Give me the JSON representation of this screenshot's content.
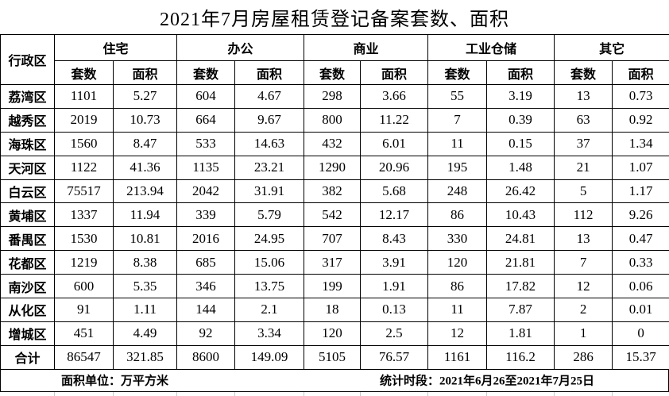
{
  "title": "2021年7月房屋租赁登记备案套数、面积",
  "table": {
    "corner_header": "行政区",
    "groups": [
      {
        "label": "住宅"
      },
      {
        "label": "办公"
      },
      {
        "label": "商业"
      },
      {
        "label": "工业仓储"
      },
      {
        "label": "其它"
      }
    ],
    "sub_headers": [
      "套数",
      "面积",
      "套数",
      "面积",
      "套数",
      "面积",
      "套数",
      "面积",
      "套数",
      "面积"
    ],
    "rows": [
      {
        "district": "荔湾区",
        "values": [
          "1101",
          "5.27",
          "604",
          "4.67",
          "298",
          "3.66",
          "55",
          "3.19",
          "13",
          "0.73"
        ]
      },
      {
        "district": "越秀区",
        "values": [
          "2019",
          "10.73",
          "664",
          "9.67",
          "800",
          "11.22",
          "7",
          "0.39",
          "63",
          "0.92"
        ]
      },
      {
        "district": "海珠区",
        "values": [
          "1560",
          "8.47",
          "533",
          "14.63",
          "432",
          "6.01",
          "11",
          "0.15",
          "37",
          "1.34"
        ]
      },
      {
        "district": "天河区",
        "values": [
          "1122",
          "41.36",
          "1135",
          "23.21",
          "1290",
          "20.96",
          "195",
          "1.48",
          "21",
          "1.07"
        ]
      },
      {
        "district": "白云区",
        "values": [
          "75517",
          "213.94",
          "2042",
          "31.91",
          "382",
          "5.68",
          "248",
          "26.42",
          "5",
          "1.17"
        ]
      },
      {
        "district": "黄埔区",
        "values": [
          "1337",
          "11.94",
          "339",
          "5.79",
          "542",
          "12.17",
          "86",
          "10.43",
          "112",
          "9.26"
        ]
      },
      {
        "district": "番禺区",
        "values": [
          "1530",
          "10.81",
          "2016",
          "24.95",
          "707",
          "8.43",
          "330",
          "24.81",
          "13",
          "0.47"
        ]
      },
      {
        "district": "花都区",
        "values": [
          "1219",
          "8.38",
          "685",
          "15.06",
          "317",
          "3.91",
          "120",
          "21.81",
          "7",
          "0.33"
        ]
      },
      {
        "district": "南沙区",
        "values": [
          "600",
          "5.35",
          "346",
          "13.75",
          "199",
          "1.91",
          "86",
          "17.82",
          "12",
          "0.06"
        ]
      },
      {
        "district": "从化区",
        "values": [
          "91",
          "1.11",
          "144",
          "2.1",
          "18",
          "0.13",
          "11",
          "7.87",
          "2",
          "0.01"
        ]
      },
      {
        "district": "增城区",
        "values": [
          "451",
          "4.49",
          "92",
          "3.34",
          "120",
          "2.5",
          "12",
          "1.81",
          "1",
          "0"
        ]
      }
    ],
    "total": {
      "district": "合计",
      "values": [
        "86547",
        "321.85",
        "8600",
        "149.09",
        "5105",
        "76.57",
        "1161",
        "116.2",
        "286",
        "15.37"
      ]
    }
  },
  "footer": {
    "unit_label": "面积单位：万平方米",
    "period_label": "统计时段：2021年6月26至2021年7月25日"
  },
  "colors": {
    "border": "#000000",
    "text": "#000000",
    "background": "#ffffff",
    "gridline_stub": "#c8c8c8"
  }
}
